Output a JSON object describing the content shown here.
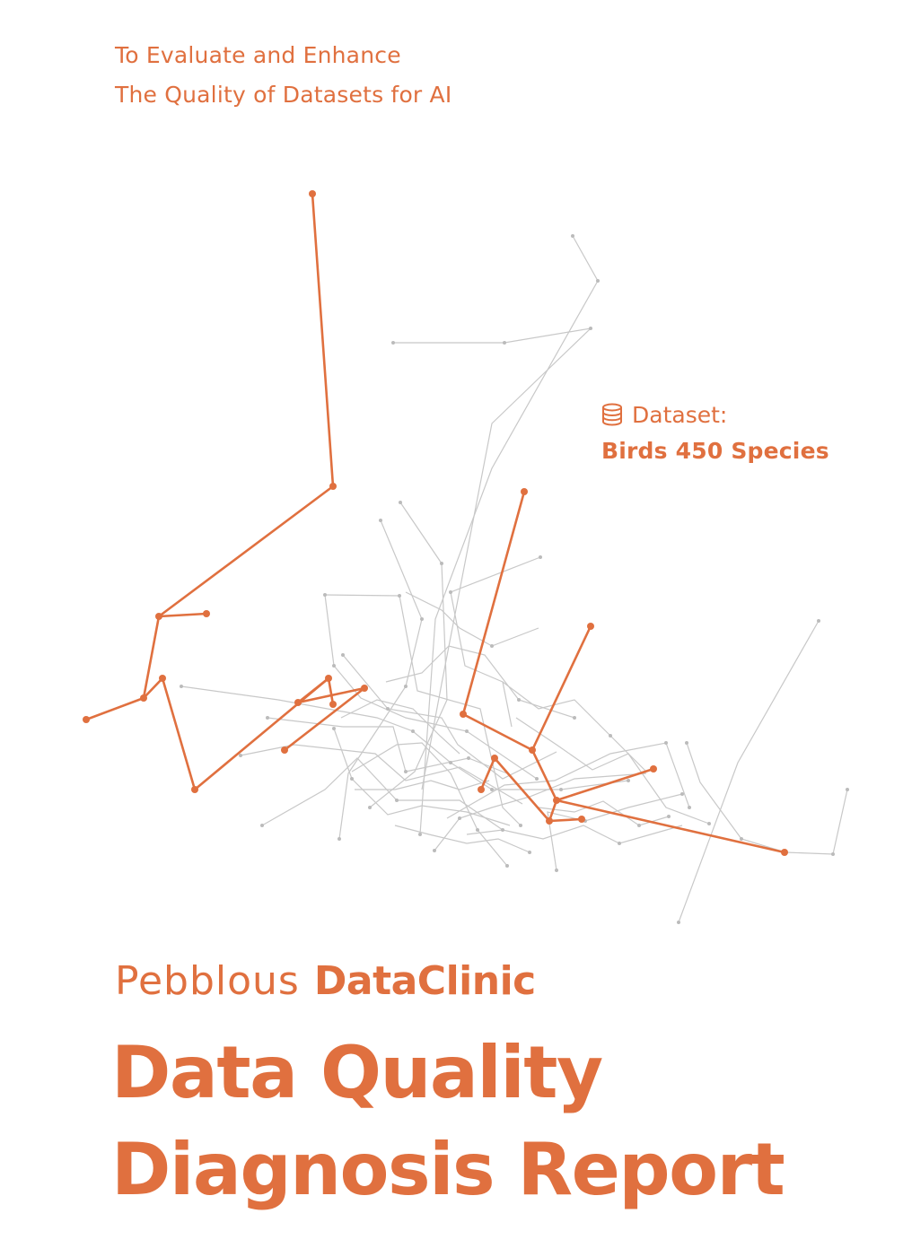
{
  "tagline": {
    "line1": "To Evaluate and Enhance",
    "line2": "The Quality of Datasets for AI"
  },
  "dataset": {
    "label": "Dataset:",
    "name": "Birds 450 Species",
    "icon": "database-icon"
  },
  "brand": {
    "company": "Pebblous",
    "product": "DataClinic"
  },
  "report": {
    "title_line1": "Data Quality",
    "title_line2": "Diagnosis Report"
  },
  "colors": {
    "accent": "#E0703F",
    "network_gray": "#C4C4C4",
    "background": "#FFFFFF"
  }
}
